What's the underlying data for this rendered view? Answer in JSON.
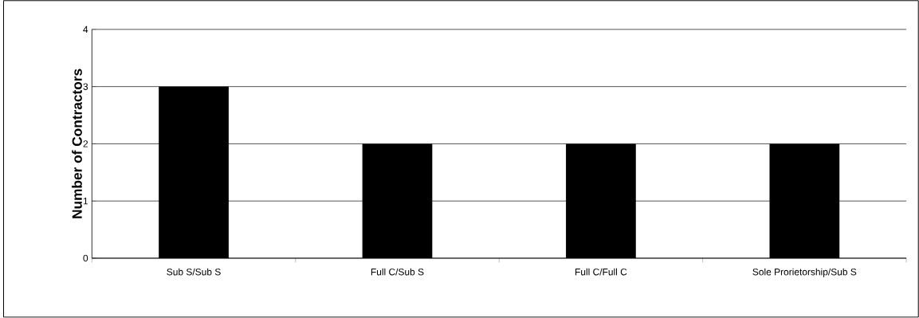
{
  "chart_data": {
    "type": "bar",
    "ylabel": "Number of Contractors",
    "categories": [
      "Sub S/Sub S",
      "Full C/Sub S",
      "Full C/Full C",
      "Sole Prorietorship/Sub S"
    ],
    "values": [
      3,
      2,
      2,
      2
    ],
    "color": "#000000",
    "ylim": [
      0,
      4
    ],
    "yticks": [
      0,
      1,
      2,
      3,
      4
    ],
    "grid": "y"
  }
}
